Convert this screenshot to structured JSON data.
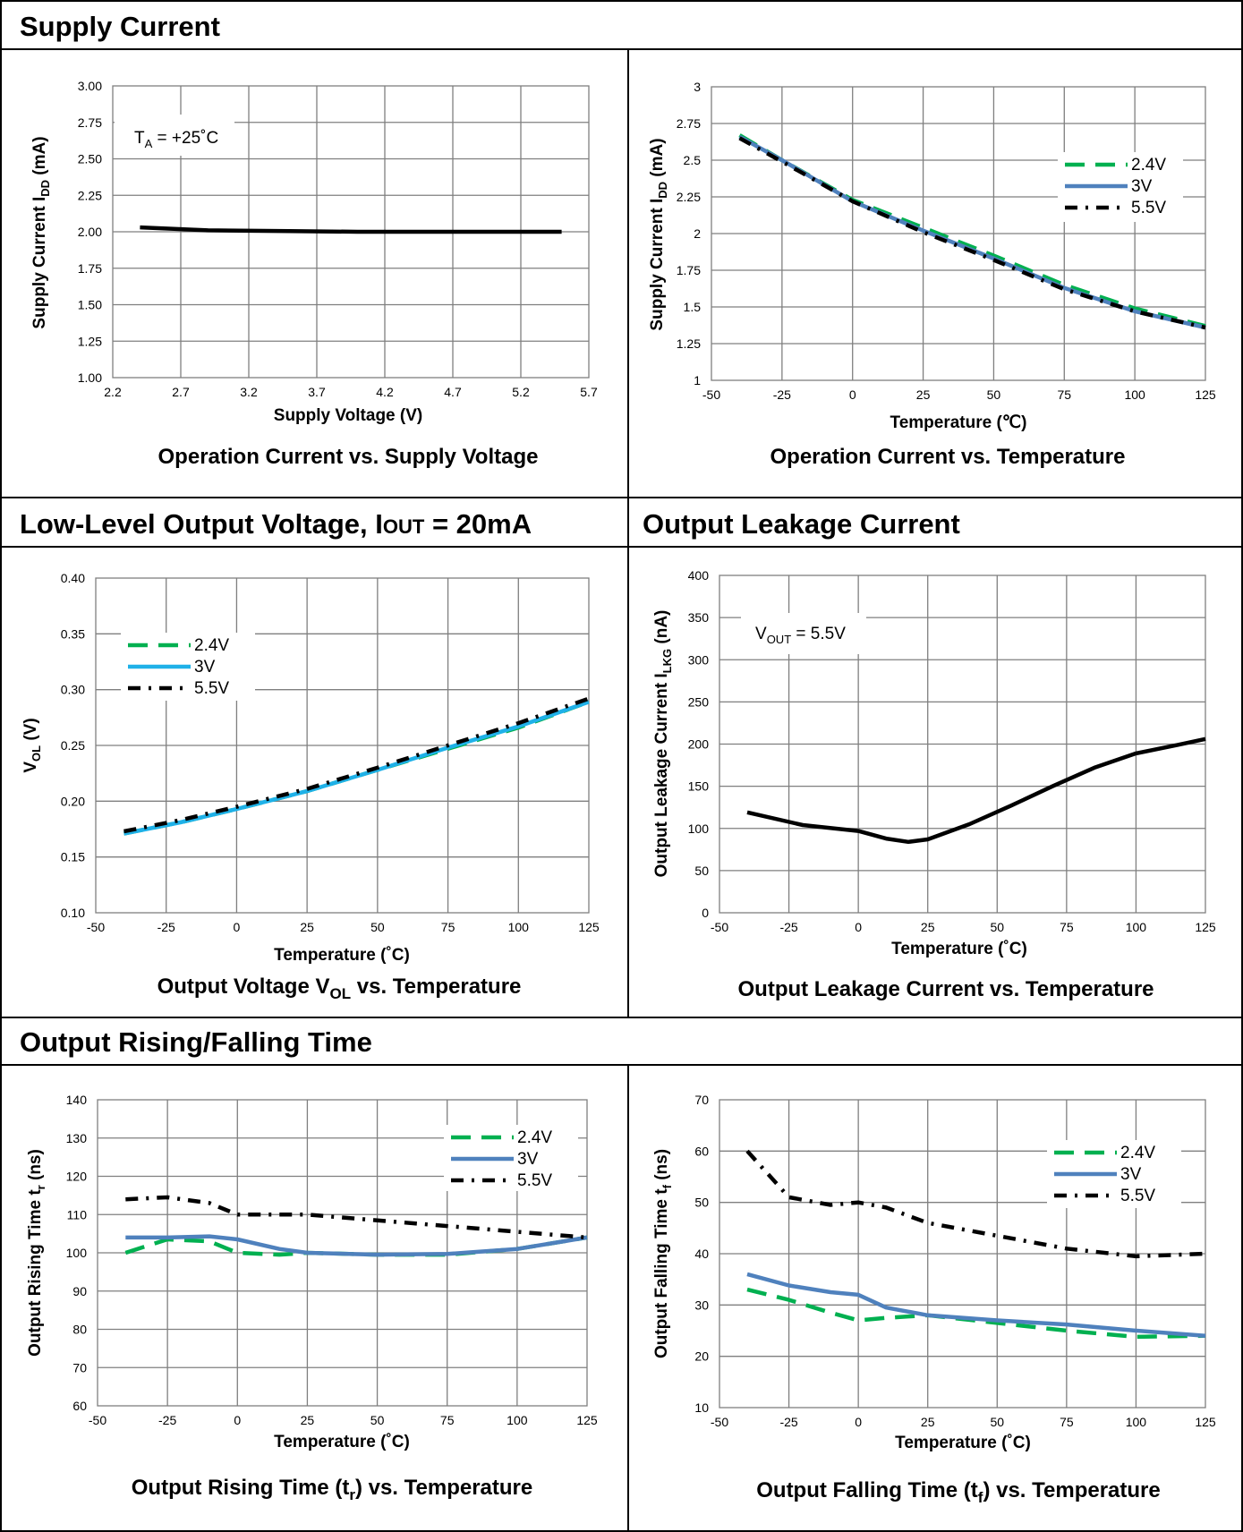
{
  "sections": {
    "supply_current": "Supply Current",
    "low_level": "Low-Level Output Voltage, ",
    "low_level_iout": "I",
    "low_level_iout_sub": "OUT",
    "low_level_tail": " = 20mA",
    "leakage": "Output Leakage Current",
    "rise_fall": "Output Rising/Falling Time"
  },
  "captions": {
    "c1": "Operation Current vs. Supply Voltage",
    "c2": "Operation Current vs. Temperature",
    "c3_a": "Output Voltage V",
    "c3_sub": "OL",
    "c3_b": " vs. Temperature",
    "c4": "Output Leakage Current vs. Temperature",
    "c5_a": "Output Rising Time (t",
    "c5_sub": "r",
    "c5_b": ") vs. Temperature",
    "c6_a": "Output Falling Time (t",
    "c6_sub": "f",
    "c6_b": ") vs. Temperature"
  },
  "legend_colors": {
    "2.4V": "#00b050",
    "3V_blue": "#4f81bd",
    "3V_cyan": "#1fb1e8",
    "5.5V": "#000000"
  },
  "chart_data": [
    {
      "id": "idd_vs_vdd",
      "type": "line",
      "xlabel": "Supply Voltage (V)",
      "ylabel_a": "Supply Current I",
      "ylabel_sub": "DD",
      "ylabel_b": " (mA)",
      "xlim": [
        2.2,
        5.7
      ],
      "ylim": [
        1.0,
        3.0
      ],
      "xticks": [
        "2.2",
        "2.7",
        "3.2",
        "3.7",
        "4.2",
        "4.7",
        "5.2",
        "5.7"
      ],
      "yticks": [
        "1.00",
        "1.25",
        "1.50",
        "1.75",
        "2.00",
        "2.25",
        "2.50",
        "2.75",
        "3.00"
      ],
      "annotation_a": "T",
      "annotation_sub": "A",
      "annotation_b": " = +25˚C",
      "series": [
        {
          "color": "#000000",
          "dash": "solid",
          "x": [
            2.4,
            2.9,
            3.5,
            4.0,
            4.5,
            5.0,
            5.5
          ],
          "y": [
            2.03,
            2.01,
            2.005,
            2.0,
            2.0,
            2.0,
            2.0
          ]
        }
      ]
    },
    {
      "id": "idd_vs_temp",
      "type": "line",
      "xlabel": "Temperature (℃)",
      "ylabel_a": "Supply Current I",
      "ylabel_sub": "DD",
      "ylabel_b": " (mA)",
      "xlim": [
        -50,
        125
      ],
      "ylim": [
        1,
        3
      ],
      "xticks": [
        "-50",
        "-25",
        "0",
        "25",
        "50",
        "75",
        "100",
        "125"
      ],
      "yticks": [
        "1",
        "1.25",
        "1.5",
        "1.75",
        "2",
        "2.25",
        "2.5",
        "2.75",
        "3"
      ],
      "legend": "top-right",
      "series": [
        {
          "name": "2.4V",
          "color": "#00b050",
          "dash": "dash",
          "x": [
            -40,
            -25,
            0,
            25,
            50,
            75,
            100,
            125
          ],
          "y": [
            2.67,
            2.5,
            2.23,
            2.04,
            1.85,
            1.65,
            1.49,
            1.37
          ]
        },
        {
          "name": "3V",
          "color": "#4f81bd",
          "dash": "solid",
          "x": [
            -40,
            -25,
            0,
            25,
            50,
            75,
            100,
            125
          ],
          "y": [
            2.66,
            2.5,
            2.22,
            2.02,
            1.83,
            1.63,
            1.47,
            1.36
          ]
        },
        {
          "name": "5.5V",
          "color": "#000000",
          "dash": "dashdot",
          "x": [
            -40,
            -25,
            0,
            25,
            50,
            75,
            100,
            125
          ],
          "y": [
            2.65,
            2.49,
            2.22,
            2.01,
            1.82,
            1.62,
            1.47,
            1.36
          ]
        }
      ]
    },
    {
      "id": "vol_vs_temp",
      "type": "line",
      "xlabel": "Temperature (˚C)",
      "ylabel_a": "V",
      "ylabel_sub": "OL",
      "ylabel_b": " (V)",
      "xlim": [
        -50,
        125
      ],
      "ylim": [
        0.1,
        0.4
      ],
      "xticks": [
        "-50",
        "-25",
        "0",
        "25",
        "50",
        "75",
        "100",
        "125"
      ],
      "yticks": [
        "0.10",
        "0.15",
        "0.20",
        "0.25",
        "0.30",
        "0.35",
        "0.40"
      ],
      "legend": "top-left",
      "series": [
        {
          "name": "2.4V",
          "color": "#00b050",
          "dash": "dash",
          "x": [
            -40,
            -20,
            0,
            25,
            50,
            75,
            100,
            125
          ],
          "y": [
            0.171,
            0.181,
            0.193,
            0.209,
            0.228,
            0.247,
            0.266,
            0.289
          ]
        },
        {
          "name": "3V",
          "color": "#1fb1e8",
          "dash": "solid",
          "x": [
            -40,
            -20,
            0,
            25,
            50,
            75,
            100,
            125
          ],
          "y": [
            0.171,
            0.181,
            0.193,
            0.209,
            0.228,
            0.248,
            0.267,
            0.289
          ]
        },
        {
          "name": "5.5V",
          "color": "#000000",
          "dash": "dashdot",
          "x": [
            -40,
            -20,
            0,
            25,
            50,
            75,
            100,
            125
          ],
          "y": [
            0.173,
            0.183,
            0.195,
            0.211,
            0.23,
            0.25,
            0.27,
            0.292
          ]
        }
      ]
    },
    {
      "id": "ilkg_vs_temp",
      "type": "line",
      "xlabel": "Temperature (˚C)",
      "ylabel_a": "Output Leakage Current I",
      "ylabel_sub": "LKG",
      "ylabel_b": " (nA)",
      "xlim": [
        -50,
        125
      ],
      "ylim": [
        0,
        400
      ],
      "xticks": [
        "-50",
        "-25",
        "0",
        "25",
        "50",
        "75",
        "100",
        "125"
      ],
      "yticks": [
        "0",
        "50",
        "100",
        "150",
        "200",
        "250",
        "300",
        "350",
        "400"
      ],
      "annotation_a": "V",
      "annotation_sub": "OUT",
      "annotation_b": " = 5.5V",
      "series": [
        {
          "color": "#000000",
          "dash": "solid",
          "x": [
            -40,
            -20,
            0,
            10,
            18,
            25,
            40,
            55,
            70,
            85,
            100,
            115,
            125
          ],
          "y": [
            119,
            104,
            97,
            88,
            84,
            87,
            105,
            127,
            150,
            172,
            189,
            199,
            206
          ]
        }
      ]
    },
    {
      "id": "tr_vs_temp",
      "type": "line",
      "xlabel": "Temperature (˚C)",
      "ylabel_a": "Output Rising Time t",
      "ylabel_sub": "r",
      "ylabel_b": " (ns)",
      "xlim": [
        -50,
        125
      ],
      "ylim": [
        60,
        140
      ],
      "xticks": [
        "-50",
        "-25",
        "0",
        "25",
        "50",
        "75",
        "100",
        "125"
      ],
      "yticks": [
        "60",
        "70",
        "80",
        "90",
        "100",
        "110",
        "120",
        "130",
        "140"
      ],
      "legend": "top-right",
      "series": [
        {
          "name": "2.4V",
          "color": "#00b050",
          "dash": "dash",
          "x": [
            -40,
            -25,
            -10,
            0,
            15,
            25,
            50,
            75,
            100,
            125
          ],
          "y": [
            100,
            103.5,
            103,
            100,
            99.5,
            100,
            99.5,
            99.5,
            101,
            104
          ]
        },
        {
          "name": "3V",
          "color": "#4f81bd",
          "dash": "solid",
          "x": [
            -40,
            -25,
            -10,
            0,
            15,
            25,
            50,
            75,
            100,
            125
          ],
          "y": [
            104,
            104,
            104.3,
            103.5,
            101,
            100,
            99.5,
            99.7,
            101,
            104
          ]
        },
        {
          "name": "5.5V",
          "color": "#000000",
          "dash": "dashdot",
          "x": [
            -40,
            -25,
            -10,
            0,
            15,
            25,
            50,
            75,
            100,
            125
          ],
          "y": [
            114,
            114.5,
            113,
            110,
            110,
            110,
            108.5,
            107,
            105.5,
            104
          ]
        }
      ]
    },
    {
      "id": "tf_vs_temp",
      "type": "line",
      "xlabel": "Temperature (˚C)",
      "ylabel_a": "Output Falling Time t",
      "ylabel_sub": "f",
      "ylabel_b": " (ns)",
      "xlim": [
        -50,
        125
      ],
      "ylim": [
        10,
        70
      ],
      "xticks": [
        "-50",
        "-25",
        "0",
        "25",
        "50",
        "75",
        "100",
        "125"
      ],
      "yticks": [
        "10",
        "20",
        "30",
        "40",
        "50",
        "60",
        "70"
      ],
      "legend": "top-right",
      "series": [
        {
          "name": "2.4V",
          "color": "#00b050",
          "dash": "dash",
          "x": [
            -40,
            -25,
            -10,
            0,
            10,
            25,
            50,
            75,
            100,
            125
          ],
          "y": [
            33,
            31,
            28.5,
            27,
            27.5,
            28,
            26.5,
            25,
            23.8,
            24
          ]
        },
        {
          "name": "3V",
          "color": "#4f81bd",
          "dash": "solid",
          "x": [
            -40,
            -25,
            -10,
            0,
            10,
            25,
            50,
            75,
            100,
            125
          ],
          "y": [
            36,
            33.8,
            32.5,
            32,
            29.5,
            28,
            27,
            26.2,
            25,
            24
          ]
        },
        {
          "name": "5.5V",
          "color": "#000000",
          "dash": "dashdot",
          "x": [
            -40,
            -25,
            -10,
            0,
            10,
            25,
            50,
            75,
            100,
            125
          ],
          "y": [
            60,
            51,
            49.5,
            50,
            49,
            46,
            43.5,
            41,
            39.5,
            40
          ]
        }
      ]
    }
  ]
}
